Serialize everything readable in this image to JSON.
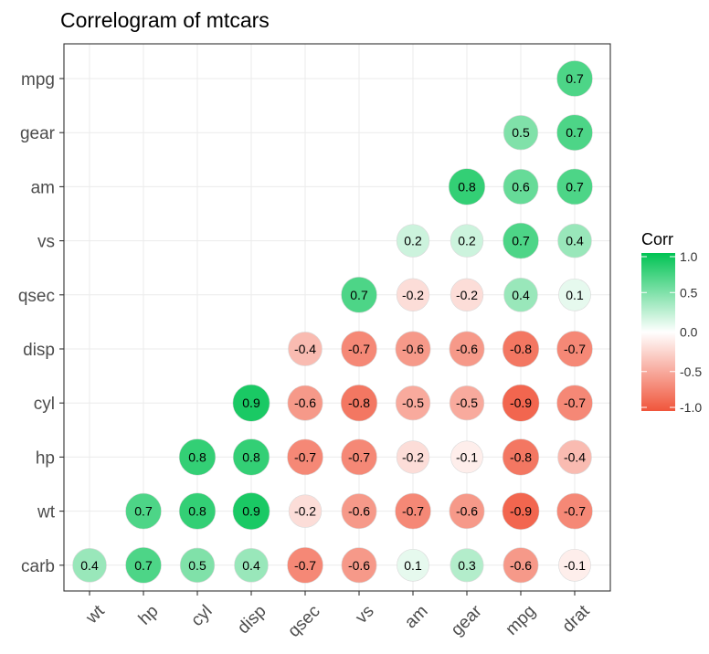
{
  "chart_data": {
    "type": "heatmap",
    "title": "Correlogram of mtcars",
    "xlabel": "",
    "ylabel": "",
    "x": [
      "wt",
      "hp",
      "cyl",
      "disp",
      "qsec",
      "vs",
      "am",
      "gear",
      "mpg",
      "drat"
    ],
    "y_top_to_bottom": [
      "mpg",
      "gear",
      "am",
      "vs",
      "qsec",
      "disp",
      "cyl",
      "hp",
      "wt",
      "carb"
    ],
    "cells": [
      {
        "x": "drat",
        "y": "mpg",
        "value": 0.7,
        "label": "0.7"
      },
      {
        "x": "mpg",
        "y": "gear",
        "value": 0.5,
        "label": "0.5"
      },
      {
        "x": "drat",
        "y": "gear",
        "value": 0.7,
        "label": "0.7"
      },
      {
        "x": "gear",
        "y": "am",
        "value": 0.8,
        "label": "0.8"
      },
      {
        "x": "mpg",
        "y": "am",
        "value": 0.6,
        "label": "0.6"
      },
      {
        "x": "drat",
        "y": "am",
        "value": 0.7,
        "label": "0.7"
      },
      {
        "x": "am",
        "y": "vs",
        "value": 0.2,
        "label": "0.2"
      },
      {
        "x": "gear",
        "y": "vs",
        "value": 0.2,
        "label": "0.2"
      },
      {
        "x": "mpg",
        "y": "vs",
        "value": 0.7,
        "label": "0.7"
      },
      {
        "x": "drat",
        "y": "vs",
        "value": 0.4,
        "label": "0.4"
      },
      {
        "x": "vs",
        "y": "qsec",
        "value": 0.7,
        "label": "0.7"
      },
      {
        "x": "am",
        "y": "qsec",
        "value": -0.2,
        "label": "-0.2"
      },
      {
        "x": "gear",
        "y": "qsec",
        "value": -0.2,
        "label": "-0.2"
      },
      {
        "x": "mpg",
        "y": "qsec",
        "value": 0.4,
        "label": "0.4"
      },
      {
        "x": "drat",
        "y": "qsec",
        "value": 0.1,
        "label": "0.1"
      },
      {
        "x": "qsec",
        "y": "disp",
        "value": -0.4,
        "label": "-0.4"
      },
      {
        "x": "vs",
        "y": "disp",
        "value": -0.7,
        "label": "-0.7"
      },
      {
        "x": "am",
        "y": "disp",
        "value": -0.6,
        "label": "-0.6"
      },
      {
        "x": "gear",
        "y": "disp",
        "value": -0.6,
        "label": "-0.6"
      },
      {
        "x": "mpg",
        "y": "disp",
        "value": -0.8,
        "label": "-0.8"
      },
      {
        "x": "drat",
        "y": "disp",
        "value": -0.7,
        "label": "-0.7"
      },
      {
        "x": "disp",
        "y": "cyl",
        "value": 0.9,
        "label": "0.9"
      },
      {
        "x": "qsec",
        "y": "cyl",
        "value": -0.6,
        "label": "-0.6"
      },
      {
        "x": "vs",
        "y": "cyl",
        "value": -0.8,
        "label": "-0.8"
      },
      {
        "x": "am",
        "y": "cyl",
        "value": -0.5,
        "label": "-0.5"
      },
      {
        "x": "gear",
        "y": "cyl",
        "value": -0.5,
        "label": "-0.5"
      },
      {
        "x": "mpg",
        "y": "cyl",
        "value": -0.9,
        "label": "-0.9"
      },
      {
        "x": "drat",
        "y": "cyl",
        "value": -0.7,
        "label": "-0.7"
      },
      {
        "x": "cyl",
        "y": "hp",
        "value": 0.8,
        "label": "0.8"
      },
      {
        "x": "disp",
        "y": "hp",
        "value": 0.8,
        "label": "0.8"
      },
      {
        "x": "qsec",
        "y": "hp",
        "value": -0.7,
        "label": "-0.7"
      },
      {
        "x": "vs",
        "y": "hp",
        "value": -0.7,
        "label": "-0.7"
      },
      {
        "x": "am",
        "y": "hp",
        "value": -0.2,
        "label": "-0.2"
      },
      {
        "x": "gear",
        "y": "hp",
        "value": -0.1,
        "label": "-0.1"
      },
      {
        "x": "mpg",
        "y": "hp",
        "value": -0.8,
        "label": "-0.8"
      },
      {
        "x": "drat",
        "y": "hp",
        "value": -0.4,
        "label": "-0.4"
      },
      {
        "x": "hp",
        "y": "wt",
        "value": 0.7,
        "label": "0.7"
      },
      {
        "x": "cyl",
        "y": "wt",
        "value": 0.8,
        "label": "0.8"
      },
      {
        "x": "disp",
        "y": "wt",
        "value": 0.9,
        "label": "0.9"
      },
      {
        "x": "qsec",
        "y": "wt",
        "value": -0.2,
        "label": "-0.2"
      },
      {
        "x": "vs",
        "y": "wt",
        "value": -0.6,
        "label": "-0.6"
      },
      {
        "x": "am",
        "y": "wt",
        "value": -0.7,
        "label": "-0.7"
      },
      {
        "x": "gear",
        "y": "wt",
        "value": -0.6,
        "label": "-0.6"
      },
      {
        "x": "mpg",
        "y": "wt",
        "value": -0.9,
        "label": "-0.9"
      },
      {
        "x": "drat",
        "y": "wt",
        "value": -0.7,
        "label": "-0.7"
      },
      {
        "x": "wt",
        "y": "carb",
        "value": 0.4,
        "label": "0.4"
      },
      {
        "x": "hp",
        "y": "carb",
        "value": 0.7,
        "label": "0.7"
      },
      {
        "x": "cyl",
        "y": "carb",
        "value": 0.5,
        "label": "0.5"
      },
      {
        "x": "disp",
        "y": "carb",
        "value": 0.4,
        "label": "0.4"
      },
      {
        "x": "qsec",
        "y": "carb",
        "value": -0.7,
        "label": "-0.7"
      },
      {
        "x": "vs",
        "y": "carb",
        "value": -0.6,
        "label": "-0.6"
      },
      {
        "x": "am",
        "y": "carb",
        "value": 0.1,
        "label": "0.1"
      },
      {
        "x": "gear",
        "y": "carb",
        "value": 0.3,
        "label": "0.3"
      },
      {
        "x": "mpg",
        "y": "carb",
        "value": -0.6,
        "label": "-0.6"
      },
      {
        "x": "drat",
        "y": "carb",
        "value": -0.1,
        "label": "-0.1"
      }
    ],
    "legend": {
      "title": "Corr",
      "ticks": [
        "1.0",
        "0.5",
        "0.0",
        "-0.5",
        "-1.0"
      ],
      "tick_values": [
        1.0,
        0.5,
        0.0,
        -0.5,
        -1.0
      ],
      "placement": "right"
    },
    "value_range": [
      -1,
      1
    ],
    "grid": true,
    "colors": {
      "high": "#00c353",
      "mid": "#ffffff",
      "low": "#f0553b",
      "panel_border": "#333333",
      "grid": "#ebebeb"
    }
  }
}
